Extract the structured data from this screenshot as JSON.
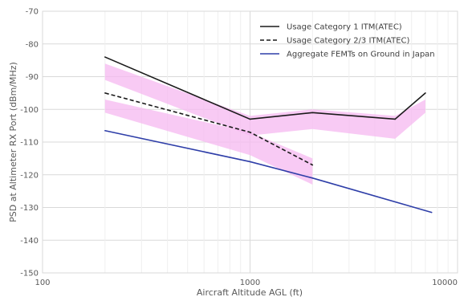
{
  "chart_data": {
    "type": "line",
    "title": "",
    "xlabel": "Aircraft Altitude AGL (ft)",
    "ylabel": "PSD at Altimeter RX Port (dBm/MHz)",
    "x_scale": "log",
    "xlim": [
      100,
      10000
    ],
    "ylim": [
      -150,
      -70
    ],
    "x_ticks": [
      100,
      1000,
      10000
    ],
    "x_tick_labels": [
      "100",
      "1000",
      "10000"
    ],
    "y_ticks": [
      -150,
      -140,
      -130,
      -120,
      -110,
      -100,
      -90,
      -80,
      -70
    ],
    "y_tick_labels": [
      "-150",
      "-140",
      "-130",
      "-120",
      "-110",
      "-100",
      "-90",
      "-80",
      "-70"
    ],
    "grid": true,
    "legend_position": "top-right",
    "series": [
      {
        "name": "Usage Category 1 ITM(ATEC)",
        "color": "#1a1a1a",
        "dash": "solid",
        "x": [
          200,
          1000,
          2000,
          5000,
          7000
        ],
        "y": [
          -84,
          -103,
          -101,
          -103,
          -95
        ]
      },
      {
        "name": "Usage Category 2/3 ITM(ATEC)",
        "color": "#1a1a1a",
        "dash": "dashed",
        "x": [
          200,
          1000,
          2000
        ],
        "y": [
          -95,
          -107,
          -117
        ]
      },
      {
        "name": "Aggregate FEMTs on Ground in Japan",
        "color": "#2e3ea8",
        "dash": "solid",
        "x": [
          200,
          1000,
          2000,
          7500
        ],
        "y": [
          -106.5,
          -116,
          -121,
          -131.5
        ]
      }
    ],
    "bands": [
      {
        "color": "#f6b8f0",
        "x": [
          200,
          1000,
          2000,
          5000,
          7000
        ],
        "upper": [
          -86,
          -102,
          -100,
          -102,
          -97
        ],
        "lower": [
          -91,
          -108,
          -106,
          -109,
          -101
        ]
      },
      {
        "color": "#f6b8f0",
        "x": [
          200,
          1000,
          2000
        ],
        "upper": [
          -97,
          -107,
          -115
        ],
        "lower": [
          -101,
          -114,
          -123
        ]
      }
    ]
  }
}
